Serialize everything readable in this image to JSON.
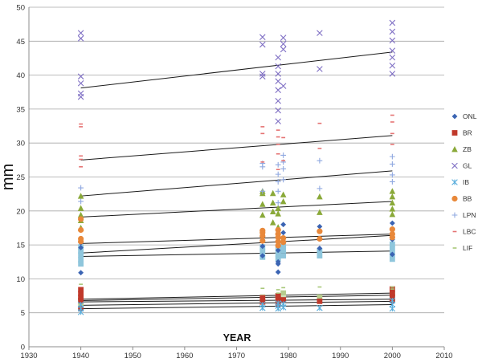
{
  "chart_data": {
    "type": "scatter",
    "title": "",
    "xlabel": "YEAR",
    "ylabel": "mm",
    "xlim": [
      1930,
      2010
    ],
    "ylim": [
      0,
      50
    ],
    "x_ticks": [
      1930,
      1940,
      1950,
      1960,
      1970,
      1980,
      1990,
      2000,
      2010
    ],
    "y_ticks": [
      0,
      5,
      10,
      15,
      20,
      25,
      30,
      35,
      40,
      45,
      50
    ],
    "grid": "horizontal",
    "legend_position": "right",
    "series": [
      {
        "name": "ONL",
        "marker": "diamond",
        "color": "#3b64b3",
        "points": [
          [
            1940,
            10.9
          ],
          [
            1940,
            14.6
          ],
          [
            1940,
            15.3
          ],
          [
            1975,
            13.4
          ],
          [
            1975,
            14.8
          ],
          [
            1978,
            11.0
          ],
          [
            1978,
            12.2
          ],
          [
            1978,
            12.5
          ],
          [
            1978,
            14.2
          ],
          [
            1979,
            16.8
          ],
          [
            1979,
            18.0
          ],
          [
            1986,
            14.5
          ],
          [
            1986,
            17.7
          ],
          [
            2000,
            13.6
          ],
          [
            2000,
            15.8
          ],
          [
            2000,
            18.2
          ]
        ]
      },
      {
        "name": "BR",
        "marker": "square",
        "color": "#c0392b",
        "points": [
          [
            1940,
            5.6
          ],
          [
            1940,
            6.8
          ],
          [
            1940,
            7.3
          ],
          [
            1940,
            7.8
          ],
          [
            1940,
            8.4
          ],
          [
            1975,
            6.6
          ],
          [
            1975,
            7.2
          ],
          [
            1978,
            6.3
          ],
          [
            1978,
            7.1
          ],
          [
            1978,
            7.5
          ],
          [
            1979,
            6.9
          ],
          [
            1986,
            6.7
          ],
          [
            2000,
            6.8
          ],
          [
            2000,
            7.3
          ],
          [
            2000,
            7.9
          ],
          [
            2000,
            8.5
          ]
        ]
      },
      {
        "name": "ZB",
        "marker": "triangle",
        "color": "#8aa939",
        "points": [
          [
            1940,
            17.5
          ],
          [
            1940,
            18.6
          ],
          [
            1940,
            19.4
          ],
          [
            1940,
            20.4
          ],
          [
            1940,
            22.2
          ],
          [
            1975,
            19.4
          ],
          [
            1975,
            21.0
          ],
          [
            1975,
            22.6
          ],
          [
            1975,
            22.9
          ],
          [
            1977,
            18.3
          ],
          [
            1977,
            19.9
          ],
          [
            1977,
            21.2
          ],
          [
            1977,
            22.6
          ],
          [
            1978,
            17.6
          ],
          [
            1978,
            19.6
          ],
          [
            1978,
            20.4
          ],
          [
            1979,
            21.4
          ],
          [
            1979,
            22.4
          ],
          [
            1986,
            19.8
          ],
          [
            1986,
            22.1
          ],
          [
            2000,
            19.5
          ],
          [
            2000,
            20.3
          ],
          [
            2000,
            21.2
          ],
          [
            2000,
            22.1
          ],
          [
            2000,
            22.9
          ]
        ]
      },
      {
        "name": "GL",
        "marker": "x",
        "color": "#7f6fc4",
        "points": [
          [
            1940,
            36.8
          ],
          [
            1940,
            37.3
          ],
          [
            1940,
            38.8
          ],
          [
            1940,
            39.8
          ],
          [
            1940,
            45.4
          ],
          [
            1940,
            46.2
          ],
          [
            1975,
            39.8
          ],
          [
            1975,
            40.2
          ],
          [
            1975,
            44.5
          ],
          [
            1975,
            45.6
          ],
          [
            1978,
            33.2
          ],
          [
            1978,
            34.8
          ],
          [
            1978,
            36.2
          ],
          [
            1978,
            37.8
          ],
          [
            1978,
            39.1
          ],
          [
            1978,
            40.2
          ],
          [
            1978,
            41.3
          ],
          [
            1978,
            42.6
          ],
          [
            1979,
            38.4
          ],
          [
            1979,
            43.8
          ],
          [
            1979,
            44.6
          ],
          [
            1979,
            45.5
          ],
          [
            1986,
            40.9
          ],
          [
            1986,
            46.2
          ],
          [
            2000,
            40.2
          ],
          [
            2000,
            41.4
          ],
          [
            2000,
            42.6
          ],
          [
            2000,
            43.6
          ],
          [
            2000,
            45.1
          ],
          [
            2000,
            46.4
          ],
          [
            2000,
            47.7
          ]
        ]
      },
      {
        "name": "IB",
        "marker": "asterisk",
        "color": "#5aaedc",
        "points": [
          [
            1940,
            5.1
          ],
          [
            1940,
            5.6
          ],
          [
            1940,
            6.2
          ],
          [
            1975,
            5.7
          ],
          [
            1975,
            6.2
          ],
          [
            1978,
            5.6
          ],
          [
            1978,
            6.0
          ],
          [
            1978,
            6.4
          ],
          [
            1979,
            5.8
          ],
          [
            1979,
            6.3
          ],
          [
            1986,
            5.7
          ],
          [
            2000,
            5.6
          ],
          [
            2000,
            6.2
          ],
          [
            2000,
            6.8
          ]
        ]
      },
      {
        "name": "BB",
        "marker": "circle",
        "color": "#e8883a",
        "points": [
          [
            1940,
            15.5
          ],
          [
            1940,
            15.9
          ],
          [
            1940,
            17.2
          ],
          [
            1940,
            18.8
          ],
          [
            1975,
            15.6
          ],
          [
            1975,
            16.3
          ],
          [
            1975,
            16.8
          ],
          [
            1975,
            17.1
          ],
          [
            1978,
            14.9
          ],
          [
            1978,
            15.5
          ],
          [
            1978,
            16.1
          ],
          [
            1978,
            16.6
          ],
          [
            1978,
            17.2
          ],
          [
            1979,
            15.4
          ],
          [
            1979,
            16.0
          ],
          [
            1986,
            15.9
          ],
          [
            1986,
            17.0
          ],
          [
            2000,
            16.1
          ],
          [
            2000,
            16.6
          ],
          [
            2000,
            17.3
          ]
        ]
      },
      {
        "name": "LPN",
        "marker": "plus",
        "color": "#8fa8e0",
        "points": [
          [
            1940,
            21.4
          ],
          [
            1940,
            23.4
          ],
          [
            1975,
            22.9
          ],
          [
            1975,
            26.5
          ],
          [
            1975,
            27.0
          ],
          [
            1978,
            21.2
          ],
          [
            1978,
            22.9
          ],
          [
            1978,
            24.3
          ],
          [
            1978,
            25.4
          ],
          [
            1978,
            26.8
          ],
          [
            1979,
            24.6
          ],
          [
            1979,
            26.2
          ],
          [
            1979,
            27.2
          ],
          [
            1979,
            28.2
          ],
          [
            1986,
            23.3
          ],
          [
            1986,
            27.4
          ],
          [
            2000,
            24.3
          ],
          [
            2000,
            25.3
          ],
          [
            2000,
            26.9
          ],
          [
            2000,
            28.0
          ]
        ]
      },
      {
        "name": "LBC",
        "marker": "dash",
        "color": "#e57373",
        "points": [
          [
            1940,
            26.5
          ],
          [
            1940,
            27.6
          ],
          [
            1940,
            28.1
          ],
          [
            1940,
            32.4
          ],
          [
            1940,
            32.8
          ],
          [
            1975,
            27.2
          ],
          [
            1975,
            31.4
          ],
          [
            1975,
            32.4
          ],
          [
            1978,
            26.1
          ],
          [
            1978,
            28.4
          ],
          [
            1978,
            29.8
          ],
          [
            1978,
            30.9
          ],
          [
            1978,
            31.9
          ],
          [
            1979,
            27.4
          ],
          [
            1979,
            30.8
          ],
          [
            1986,
            29.2
          ],
          [
            1986,
            32.9
          ],
          [
            2000,
            29.8
          ],
          [
            2000,
            31.4
          ],
          [
            2000,
            33.1
          ],
          [
            2000,
            34.1
          ]
        ]
      },
      {
        "name": "LIF",
        "marker": "dash",
        "color": "#a8c87a",
        "points": [
          [
            1940,
            9.2
          ],
          [
            1975,
            8.6
          ],
          [
            1978,
            7.9
          ],
          [
            1978,
            8.4
          ],
          [
            1979,
            8.7
          ],
          [
            1986,
            8.8
          ],
          [
            2000,
            8.5
          ],
          [
            2000,
            8.8
          ]
        ]
      }
    ],
    "filled_squares_note": "light blue square markers (series without legend entry)",
    "unlabeled_series": [
      {
        "marker": "square",
        "color": "#8fc6dc",
        "points": [
          [
            1940,
            12.2
          ],
          [
            1940,
            12.8
          ],
          [
            1940,
            13.5
          ],
          [
            1940,
            14.1
          ],
          [
            1940,
            14.7
          ],
          [
            1975,
            13.2
          ],
          [
            1975,
            14.0
          ],
          [
            1975,
            14.7
          ],
          [
            1978,
            13.0
          ],
          [
            1978,
            13.6
          ],
          [
            1978,
            14.3
          ],
          [
            1979,
            13.4
          ],
          [
            1979,
            14.2
          ],
          [
            1979,
            14.9
          ],
          [
            1986,
            13.4
          ],
          [
            1986,
            14.1
          ],
          [
            2000,
            12.9
          ],
          [
            2000,
            13.6
          ],
          [
            2000,
            14.4
          ],
          [
            2000,
            15.1
          ]
        ]
      },
      {
        "marker": "square",
        "color": "#b6cc8e",
        "points": [
          [
            1940,
            6.2
          ],
          [
            1940,
            6.9
          ],
          [
            1975,
            6.6
          ],
          [
            1975,
            7.3
          ],
          [
            1978,
            6.8
          ],
          [
            1978,
            7.4
          ],
          [
            1979,
            7.0
          ],
          [
            1979,
            7.9
          ],
          [
            1986,
            7.3
          ],
          [
            2000,
            7.1
          ],
          [
            2000,
            7.8
          ]
        ]
      }
    ],
    "trend_lines": [
      {
        "x": [
          1940,
          2000
        ],
        "y": [
          38.1,
          43.4
        ]
      },
      {
        "x": [
          1940,
          2000
        ],
        "y": [
          27.5,
          31.1
        ]
      },
      {
        "x": [
          1940,
          2000
        ],
        "y": [
          22.2,
          25.9
        ]
      },
      {
        "x": [
          1940,
          2000
        ],
        "y": [
          19.1,
          21.4
        ]
      },
      {
        "x": [
          1940,
          2000
        ],
        "y": [
          15.2,
          16.6
        ]
      },
      {
        "x": [
          1940,
          2000
        ],
        "y": [
          13.8,
          16.4
        ]
      },
      {
        "x": [
          1940,
          2000
        ],
        "y": [
          13.3,
          14.1
        ]
      },
      {
        "x": [
          1940,
          2000
        ],
        "y": [
          7.0,
          7.9
        ]
      },
      {
        "x": [
          1940,
          2000
        ],
        "y": [
          6.8,
          7.6
        ]
      },
      {
        "x": [
          1940,
          2000
        ],
        "y": [
          6.6,
          7.0
        ]
      },
      {
        "x": [
          1940,
          2000
        ],
        "y": [
          6.1,
          6.7
        ]
      },
      {
        "x": [
          1940,
          2000
        ],
        "y": [
          5.6,
          6.2
        ]
      }
    ]
  }
}
